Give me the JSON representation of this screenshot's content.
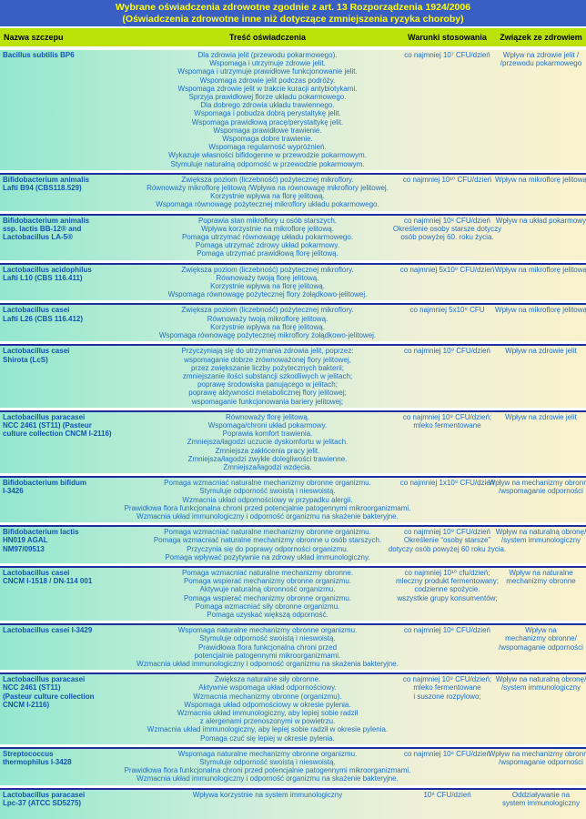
{
  "title": {
    "line1": "Wybrane oświadczenia zdrowotne zgodnie z art. 13 Rozporządzenia 1924/2006",
    "line2": "(Oświadczenia zdrowotne inne niż dotyczące zmniejszenia ryzyka choroby)"
  },
  "columns": [
    "Nazwa szczepu",
    "Treść oświadczenia",
    "Warunki stosowania",
    "Związek ze zdrowiem"
  ],
  "colors": {
    "title_bar": "#3a5fc4",
    "title_text": "#ffff00",
    "header_bg": "#bbe109",
    "separator": "#202d9e",
    "strain_text": "#1155ae",
    "claim_text": "#1e6ec6",
    "row_gradient_left": "#93e7ce",
    "row_gradient_right": "#f9f2cc"
  },
  "rows": [
    {
      "strain": [
        "Bacillus subtilis BP6"
      ],
      "claims": [
        "Dla zdrowia jelit (przewodu pokarmowego).",
        "Wspomaga i utrzymuje zdrowie jelit.",
        "Wspomaga i utrzymuje prawidłowe funkcjonowanie jelit.",
        "Wspomaga zdrowie jelit podczas podróży.",
        "Wspomaga zdrowie jelit w trakcie kuracji antybiotykami.",
        "Sprzyja prawidłowej florze układu pokarmowego.",
        "Dla dobrego zdrowia układu trawiennego.",
        "Wspomaga i pobudza dobrą perystaltykę jelit.",
        "Wspomaga prawidłową pracę/perystaltykę jelit.",
        "Wspomaga prawidłowe trawienie.",
        "Wspomaga dobre trawienie.",
        "Wspomaga regularność wypróżnień.",
        "Wykazuje własności bifidogenne w przewodzie pokarmowym.",
        "Stymuluje naturalną odporność w przewodzie pokarmowym."
      ],
      "conditions": [
        "co najmniej 10⁷ CFU/dzień"
      ],
      "relation": [
        "Wpływ na zdrowie jelit /",
        "/przewodu pokarmowego"
      ]
    },
    {
      "strain": [
        "Bifidobacterium animalis",
        "Lafti B94 (CBS118.529)"
      ],
      "claims": [
        "Zwiększa poziom (liczebność) pożytecznej mikroflory.",
        "Równoważy mikroflorę jelitową /Wpływa na równowagę mikroflory jelitowej.",
        "Korzystnie wpływa na florę jelitową.",
        "Wspomaga równowagę pożytecznej mikroflory układu pokarmowego."
      ],
      "conditions": [
        "co najmniej 10¹⁰ CFU/dzień"
      ],
      "relation": [
        "Wpływ na mikroflorę jelitową"
      ]
    },
    {
      "strain": [
        "Bifidobacterium animalis",
        "ssp. lactis BB-12® and",
        "Lactobacillus LA-5®"
      ],
      "claims": [
        "Poprawia stan mikroflory u osób starszych.",
        "Wpływa korzystnie na mikroflorę jelitową.",
        "Pomaga utrzymać równowagę układu pokarmowego.",
        "Pomaga utrzymać zdrowy układ pokarmowy.",
        "Pomaga utrzymać prawidłową florę jelitową."
      ],
      "conditions": [
        "co najmniej 10⁸ CFU/dzień",
        "Określenie osoby starsze dotyczy",
        "osób powyżej 60. roku życia."
      ],
      "relation": [
        "Wpływ na układ pokarmowy"
      ]
    },
    {
      "strain": [
        "Lactobacillus acidophilus",
        "Lafti L10 (CBS 116.411)"
      ],
      "claims": [
        "Zwiększa poziom (liczebność) pożytecznej mikroflory.",
        "Równoważy twoją florę jelitową.",
        "Korzystnie wpływa na florę jelitową.",
        "Wspomaga równowagę pożytecznej flory żołądkowo-jelitowej."
      ],
      "conditions": [
        "co najmniej 5x10⁹ CFU/dzień"
      ],
      "relation": [
        "Wpływ na mikroflorę jelitową"
      ]
    },
    {
      "strain": [
        "Lactobacillus casei",
        "Lafti L26 (CBS 116.412)"
      ],
      "claims": [
        "Zwiększa poziom (liczebność) pożytecznej mikroflory.",
        "Równoważy twoją mikroflorę jelitową.",
        "Korzystnie wpływa na florę jelitową.",
        "Wspomaga równowagę pożytecznej mikroflory żołądkowo-jelitowej."
      ],
      "conditions": [
        "co najmniej 5x10⁹ CFU"
      ],
      "relation": [
        "Wpływ na mikroflorę jelitową"
      ]
    },
    {
      "strain": [
        "Lactobacillus casei",
        "Shirota (LcS)"
      ],
      "claims": [
        "Przyczyniają się do utrzymania zdrowia jelit, poprzez:",
        "wspomaganie dobrze zrównoważonej flory jelitowej,",
        "przez zwiększanie liczby pożytecznych bakterii;",
        "zmniejszanie ilości substancji szkodliwych w jelitach;",
        "poprawę środowiska panującego w jelitach;",
        "poprawę aktywności metabolicznej flory jelitowej;",
        "wspomaganie funkcjonowania bariery jelitowej;"
      ],
      "conditions": [
        "co najmniej 10⁹ CFU/dzień"
      ],
      "relation": [
        "Wpływ na zdrowie jelit"
      ]
    },
    {
      "strain": [
        "Lactobacillus paracasei",
        "NCC 2461 (ST11) (Pasteur",
        "culture collection CNCM I-2116)"
      ],
      "claims": [
        "Równoważy florę jelitową.",
        "Wspomaga/chroni układ pokarmowy.",
        "Poprawia komfort trawienia.",
        "Zmniejsza/łagodzi uczucie dyskomfortu w jelitach.",
        "Zmniejsza zakłócenia pracy jelit.",
        "Zmniejsza/łagodzi zwykłe dolegliwości trawienne.",
        "Zmniejsza/łagodzi wzdęcia."
      ],
      "conditions": [
        "co najmniej 10⁹ CFU/dzień;",
        "mleko fermentowane"
      ],
      "relation": [
        "Wpływ na zdrowie jelit"
      ]
    },
    {
      "strain": [
        "Bifidobacterium bifidum",
        "I-3426"
      ],
      "claims": [
        "Pomaga wzmacniać naturalne mechanizmy obronne organizmu.",
        "Stymuluje odporność swoistą i nieswoistą.",
        "Wzmacnia układ odpornościowy w przypadku alergii.",
        "Prawidłowa flora funkcjonalna chroni przed potencjalnie patogennymi mikroorganizmami.",
        "Wzmacnia układ immunologiczny i odporność organizmu na skażenie bakteryjne."
      ],
      "conditions": [
        "co najmniej 1x10⁸ CFU/dzień"
      ],
      "relation": [
        "Wpływ na mechanizmy obronne/",
        "/wspomaganie odporności"
      ]
    },
    {
      "strain": [
        "Bifidobacterium lactis",
        "HN019 AGAL",
        "NM97/09513"
      ],
      "claims": [
        "Pomaga wzmacniać naturalne mechanizmy obronne organizmu.",
        "Pomaga wzmacniać naturalne mechanizmy obronne u osób starszych.",
        "Przyczynia się do poprawy odporności organizmu.",
        "Pomaga wpływać pozytywnie na zdrowy układ immunologiczny."
      ],
      "conditions": [
        "co najmniej 10⁹ CFU/dzień",
        "Określenie “osoby starsze”",
        "dotyczy osób powyżej 60 roku życia."
      ],
      "relation": [
        "Wpływ na naturalną obronę/",
        "/system immunologiczny"
      ]
    },
    {
      "strain": [
        "Lactobacillus casei",
        "CNCM I-1518 / DN-114 001"
      ],
      "claims": [
        "Pomaga wzmacniać naturalne mechanizmy obronne.",
        "Pomaga wspierać mechanizmy obronne organizmu.",
        "Aktywuje naturalną obronność organizmu.",
        "Pomaga wspierać mechanizmy obronne organizmu.",
        "Pomaga wzmacniać siły obronne organizmu.",
        "Pomaga uzyskać większą odporność."
      ],
      "conditions": [
        "co najmniej 10¹⁰ cfu/dzień;",
        "mleczny produkt fermentowany;",
        "codzienne spożycie.",
        "wszystkie grupy konsumentów;"
      ],
      "relation": [
        "Wpływ na naturalne",
        "mechanizmy obronne"
      ]
    },
    {
      "strain": [
        "Lactobacillus casei I-3429"
      ],
      "claims": [
        "Wspomaga naturalne mechanizmy obronne organizmu.",
        "Stymuluje odporność swoistą i nieswoistą.",
        "Prawidłowa flora funkcjonalna chroni przed",
        "potencjalnie patogennymi mikroorganizmami.",
        "Wzmacnia układ immunologiczny i odporność organizmu na skażenia bakteryjne."
      ],
      "conditions": [
        "co najmniej 10⁸ CFU/dzień"
      ],
      "relation": [
        "Wpływ na",
        "mechanizmy obronne/",
        "/wspomaganie odporności"
      ]
    },
    {
      "strain": [
        "Lactobacillus paracasei",
        "NCC 2461 (ST11)",
        "(Pasteur culture collection",
        "CNCM I-2116)"
      ],
      "claims": [
        "Zwiększa naturalne siły obronne.",
        "Aktywnie wspomaga układ odpornościowy.",
        "Wzmacnia mechanizmy obronne (organizmu).",
        "Wspomaga układ odpornościowy w okresie pylenia.",
        "Wzmacnia układ immunologiczny, aby lepiej sobie radził",
        "z alergenami przenoszonymi w powietrzu.",
        "Wzmacnia układ immunologiczny, aby lepiej sobie radził w okresie pylenia.",
        "Pomaga czuć się lepiej w okresie pylenia."
      ],
      "conditions": [
        "co najmniej 10⁹ CFU/dzień;",
        "mleko fermentowane",
        "i suszone rozpylowo;"
      ],
      "relation": [
        "Wpływ na naturalną obronę/",
        "/system immunologiczny"
      ]
    },
    {
      "strain": [
        "Streptococcus",
        "thermophilus I-3428"
      ],
      "claims": [
        "Wspomaga naturalne mechanizmy obronne organizmu.",
        "Stymuluje odporność swoistą i nieswoistą.",
        "Prawidłowa flora funkcjonalna chroni przed potencjalnie patogennymi mikroorganizmami.",
        "Wzmacnia układ immunologiczny i odporność organizmu na skażenie bakteryjne."
      ],
      "conditions": [
        "co najmniej 10⁸ CFU/dzień"
      ],
      "relation": [
        "Wpływ na mechanizmy obronne/",
        "/wspomaganie odporności"
      ]
    },
    {
      "strain": [
        "Lactobacillus paracasei",
        "Lpc-37 (ATCC SD5275)"
      ],
      "claims": [
        "Wpływa korzystnie na system immunologiczny"
      ],
      "conditions": [
        "10⁹ CFU/dzień"
      ],
      "relation": [
        "Oddziaływanie na",
        "system immunologiczny"
      ]
    }
  ]
}
